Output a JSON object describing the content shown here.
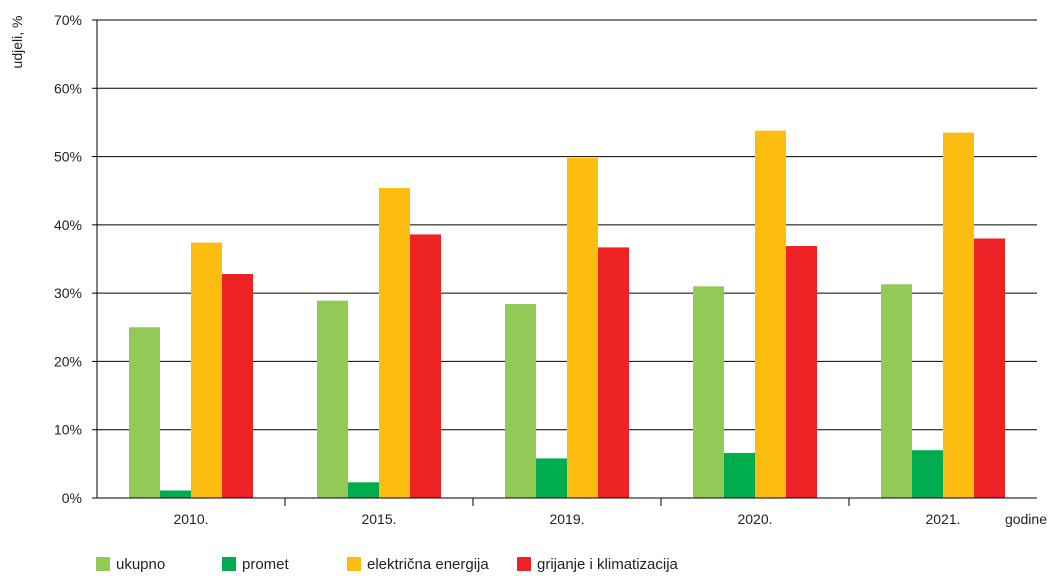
{
  "chart_data": {
    "type": "bar",
    "ylabel": "udjeli, %",
    "xlabel": "godine",
    "ylim": [
      0,
      70
    ],
    "yticks": [
      0,
      10,
      20,
      30,
      40,
      50,
      60,
      70
    ],
    "ytick_labels": [
      "0%",
      "10%",
      "20%",
      "30%",
      "40%",
      "50%",
      "60%",
      "70%"
    ],
    "categories": [
      "2010.",
      "2015.",
      "2019.",
      "2020.",
      "2021."
    ],
    "grid": true,
    "legend_position": "bottom",
    "series": [
      {
        "name": "ukupno",
        "color": "#92c957",
        "values": [
          25.0,
          28.9,
          28.4,
          31.0,
          31.3
        ]
      },
      {
        "name": "promet",
        "color": "#00ad4e",
        "values": [
          1.1,
          2.3,
          5.8,
          6.6,
          7.0
        ]
      },
      {
        "name": "električna energija",
        "color": "#fdbd10",
        "values": [
          37.4,
          45.4,
          49.8,
          53.8,
          53.5
        ]
      },
      {
        "name": "grijanje i klimatizacija",
        "color": "#ed2224",
        "values": [
          32.8,
          38.6,
          36.7,
          36.9,
          38.0
        ]
      }
    ]
  }
}
